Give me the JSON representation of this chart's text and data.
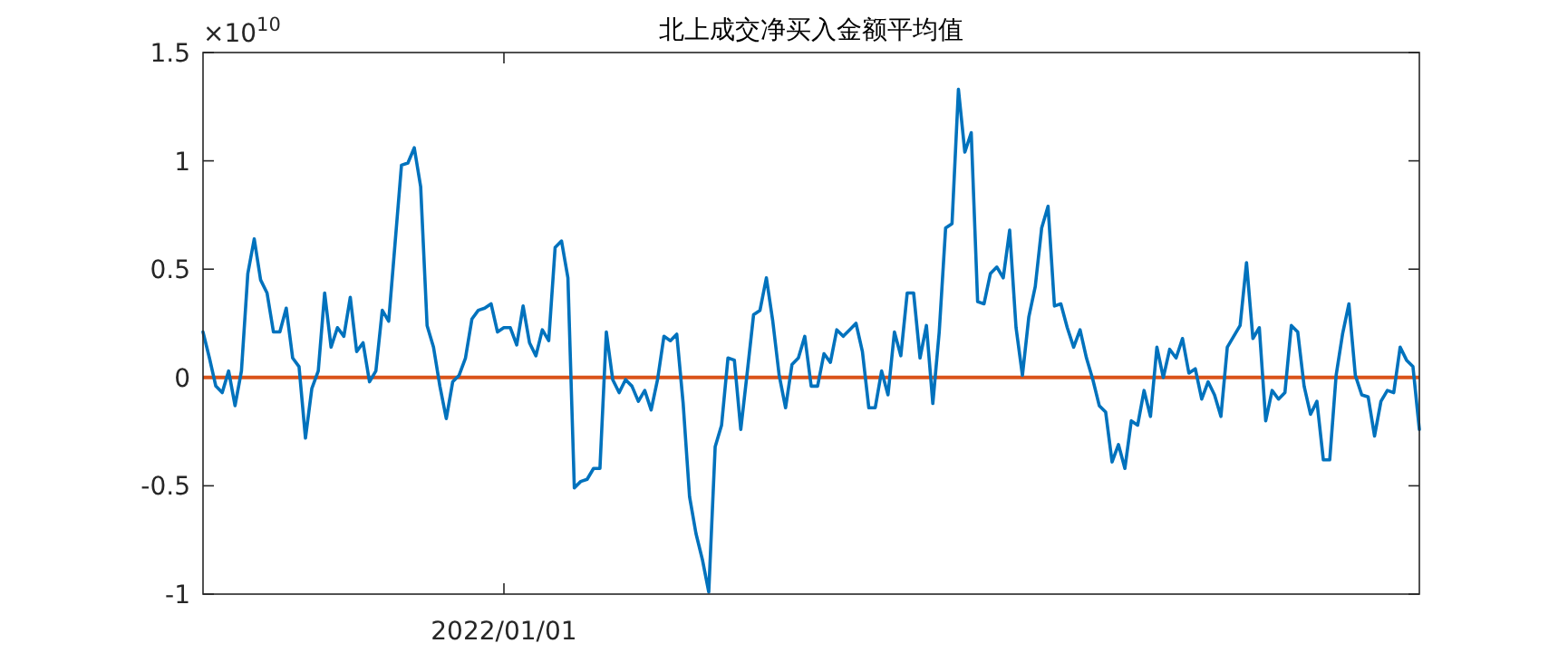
{
  "chart_data": {
    "type": "line",
    "title": "北上成交净买入金额平均值",
    "annotations": [
      "×10$^{10}$",
      "2022/01/01"
    ],
    "categories": [
      null,
      null,
      null,
      null,
      null,
      null,
      null,
      null,
      null,
      null,
      null,
      null,
      null,
      null,
      null,
      null,
      null,
      null,
      null,
      null,
      null,
      null,
      null,
      null,
      null,
      null,
      null,
      null,
      null,
      null,
      null,
      null,
      null,
      null,
      null,
      null,
      null,
      null,
      null,
      null,
      null,
      null,
      null,
      null,
      null,
      null,
      null,
      null,
      null,
      null,
      null,
      null,
      null,
      null,
      null,
      null,
      null,
      null,
      null,
      null,
      null,
      null,
      null,
      null,
      null,
      null,
      null,
      null,
      null,
      null,
      null,
      null,
      null,
      null,
      null,
      null,
      null,
      null,
      null,
      null,
      null,
      null,
      null,
      null,
      null,
      null,
      null,
      null,
      null,
      null,
      null,
      null,
      null,
      null,
      null,
      null,
      null,
      null,
      null,
      null,
      null,
      null,
      null,
      null,
      null,
      null,
      null,
      null,
      null,
      null,
      null,
      null,
      null,
      null,
      null,
      null,
      null,
      null,
      null,
      null,
      null,
      null,
      null,
      null,
      null,
      null,
      null,
      null,
      null,
      null,
      null,
      null,
      null,
      null,
      null,
      null,
      null,
      null,
      null,
      null,
      null,
      null,
      null,
      null,
      null,
      null,
      null,
      null,
      null,
      null,
      null,
      null,
      null,
      null,
      null,
      null,
      null,
      null,
      null,
      null,
      null,
      null,
      null,
      null,
      null,
      null,
      null,
      null,
      null,
      null,
      null,
      null,
      null,
      null,
      null,
      null,
      null,
      null,
      null,
      null,
      null,
      null,
      null,
      null,
      null,
      null,
      null,
      null,
      null,
      null,
      null
    ],
    "ylim": [
      -1,
      1.5
    ],
    "yticks": [
      {
        "value": -1,
        "label": "-1"
      },
      {
        "value": -0.5,
        "label": "-0.5"
      },
      {
        "value": 0,
        "label": "0"
      },
      {
        "value": 0.5,
        "label": "0.5"
      },
      {
        "value": 1,
        "label": "1"
      },
      {
        "value": 1.5,
        "label": "1.5"
      }
    ],
    "ref_lines": [
      {
        "axis": "y",
        "value": 0,
        "color": "#d95319"
      }
    ],
    "series": [
      {
        "color": "#0072bd",
        "values": [
          0.21,
          0.09,
          -0.04,
          -0.07,
          0.03,
          -0.13,
          0.03,
          0.48,
          0.64,
          0.45,
          0.39,
          0.21,
          0.21,
          0.32,
          0.09,
          0.05,
          -0.28,
          -0.05,
          0.03,
          0.39,
          0.14,
          0.23,
          0.19,
          0.37,
          0.12,
          0.16,
          -0.02,
          0.03,
          0.31,
          0.26,
          0.62,
          0.98,
          0.99,
          1.06,
          0.88,
          0.24,
          0.14,
          -0.04,
          -0.19,
          -0.02,
          0.01,
          0.09,
          0.27,
          0.31,
          0.32,
          0.34,
          0.21,
          0.23,
          0.23,
          0.15,
          0.33,
          0.16,
          0.1,
          0.22,
          0.17,
          0.6,
          0.63,
          0.46,
          -0.51,
          -0.48,
          -0.47,
          -0.42,
          -0.42,
          0.21,
          -0.01,
          -0.07,
          -0.01,
          -0.04,
          -0.11,
          -0.06,
          -0.15,
          -0.01,
          0.19,
          0.17,
          0.2,
          -0.12,
          -0.55,
          -0.72,
          -0.84,
          -0.99,
          -0.32,
          -0.22,
          0.09,
          0.08,
          -0.24,
          0.02,
          0.29,
          0.31,
          0.46,
          0.26,
          0.01,
          -0.14,
          0.06,
          0.09,
          0.19,
          -0.04,
          -0.04,
          0.11,
          0.07,
          0.22,
          0.19,
          0.22,
          0.25,
          0.12,
          -0.14,
          -0.14,
          0.03,
          -0.08,
          0.21,
          0.1,
          0.39,
          0.39,
          0.09,
          0.24,
          -0.12,
          0.21,
          0.69,
          0.71,
          1.33,
          1.04,
          1.13,
          0.35,
          0.34,
          0.48,
          0.51,
          0.46,
          0.68,
          0.23,
          0.01,
          0.28,
          0.42,
          0.69,
          0.79,
          0.33,
          0.34,
          0.23,
          0.14,
          0.22,
          0.09,
          -0.01,
          -0.13,
          -0.16,
          -0.39,
          -0.31,
          -0.42,
          -0.2,
          -0.22,
          -0.06,
          -0.18,
          0.14,
          0,
          0.13,
          0.09,
          0.18,
          0.02,
          0.04,
          -0.1,
          -0.02,
          -0.08,
          -0.18,
          0.14,
          0.19,
          0.24,
          0.53,
          0.18,
          0.23,
          -0.2,
          -0.06,
          -0.1,
          -0.07,
          0.24,
          0.21,
          -0.04,
          -0.17,
          -0.11,
          -0.38,
          -0.38,
          0.01,
          0.2,
          0.34,
          0.01,
          -0.08,
          -0.09,
          -0.27,
          -0.11,
          -0.06,
          -0.07,
          0.14,
          0.08,
          0.05,
          -0.24
        ]
      }
    ]
  }
}
